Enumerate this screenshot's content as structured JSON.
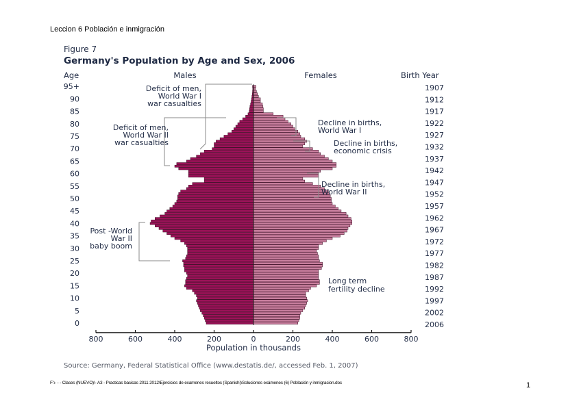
{
  "document": {
    "header": "Leccion 6 Población e inmigración",
    "footer": "F:\\- - - Clases (NUEVO)\\- A3 - Practicas basicas 2011 2012\\Ejercicios de examenes resueltos (Spanish)\\Soluciones exámenes (6) Población y inmigracion.doc",
    "page_number": "1"
  },
  "chart_data": {
    "type": "bar",
    "subtype": "population-pyramid",
    "figure_label": "Figure 7",
    "title": "Germany's Population by Age and Sex, 2006",
    "ylabel": "Age",
    "ylabel_right": "Birth Year",
    "xlabel": "Population in thousands",
    "source": "Source: Germany, Federal Statistical Office (www.destatis.de/, accessed Feb. 1, 2007)",
    "xlim": [
      -800,
      800
    ],
    "x_ticks": [
      "800",
      "600",
      "400",
      "200",
      "0",
      "200",
      "400",
      "600",
      "800"
    ],
    "age_ticks": [
      "95+",
      "90",
      "85",
      "80",
      "75",
      "70",
      "65",
      "60",
      "55",
      "50",
      "45",
      "40",
      "35",
      "30",
      "25",
      "20",
      "15",
      "10",
      "5",
      "0"
    ],
    "birth_year_ticks": [
      "1907",
      "1912",
      "1917",
      "1922",
      "1927",
      "1932",
      "1937",
      "1942",
      "1947",
      "1952",
      "1957",
      "1962",
      "1967",
      "1972",
      "1977",
      "1982",
      "1987",
      "1992",
      "1997",
      "2002",
      "2006"
    ],
    "grid": false,
    "series": [
      {
        "name": "Males",
        "color": "#9b1258",
        "values": [
          240,
          245,
          250,
          255,
          262,
          270,
          275,
          280,
          285,
          290,
          285,
          290,
          300,
          310,
          340,
          350,
          345,
          345,
          340,
          335,
          340,
          350,
          350,
          355,
          355,
          360,
          345,
          340,
          335,
          335,
          335,
          340,
          350,
          370,
          400,
          420,
          440,
          460,
          480,
          500,
          525,
          520,
          500,
          475,
          450,
          440,
          425,
          410,
          400,
          390,
          385,
          385,
          380,
          370,
          340,
          330,
          310,
          250,
          250,
          330,
          330,
          330,
          380,
          400,
          390,
          340,
          320,
          290,
          270,
          250,
          210,
          200,
          200,
          190,
          170,
          150,
          130,
          110,
          100,
          90,
          80,
          70,
          55,
          40,
          28,
          22,
          20,
          18,
          15,
          12,
          10,
          8,
          6,
          5,
          4,
          5
        ]
      },
      {
        "name": "Females",
        "color": "#c97f9e",
        "values": [
          225,
          230,
          235,
          235,
          240,
          250,
          260,
          265,
          270,
          275,
          270,
          265,
          265,
          280,
          290,
          320,
          335,
          335,
          330,
          330,
          330,
          330,
          345,
          350,
          350,
          335,
          330,
          330,
          325,
          320,
          330,
          330,
          350,
          370,
          400,
          440,
          460,
          475,
          480,
          490,
          500,
          500,
          495,
          480,
          470,
          445,
          430,
          415,
          400,
          395,
          395,
          390,
          385,
          380,
          360,
          340,
          300,
          260,
          250,
          330,
          330,
          340,
          400,
          420,
          420,
          400,
          380,
          360,
          340,
          330,
          300,
          250,
          260,
          270,
          260,
          240,
          235,
          225,
          210,
          200,
          190,
          175,
          160,
          150,
          100,
          50,
          50,
          48,
          45,
          35,
          35,
          25,
          20,
          15,
          10,
          12
        ]
      }
    ],
    "annotations": [
      {
        "id": "ww1-men",
        "lines": [
          "Deficit of men,",
          "World War I",
          "war casualties"
        ]
      },
      {
        "id": "ww2-men",
        "lines": [
          "Deficit of men,",
          "World War II",
          "war casualties"
        ]
      },
      {
        "id": "ww1-births",
        "lines": [
          "Decline in births,",
          "World War I"
        ]
      },
      {
        "id": "crisis-births",
        "lines": [
          "Decline in births,",
          "economic crisis"
        ]
      },
      {
        "id": "ww2-births",
        "lines": [
          "Decline in births,",
          "World War II"
        ]
      },
      {
        "id": "baby-boom",
        "lines": [
          "Post -World",
          "War II",
          "baby boom"
        ]
      },
      {
        "id": "fertility",
        "lines": [
          "Long term",
          "fertility decline"
        ]
      }
    ]
  }
}
